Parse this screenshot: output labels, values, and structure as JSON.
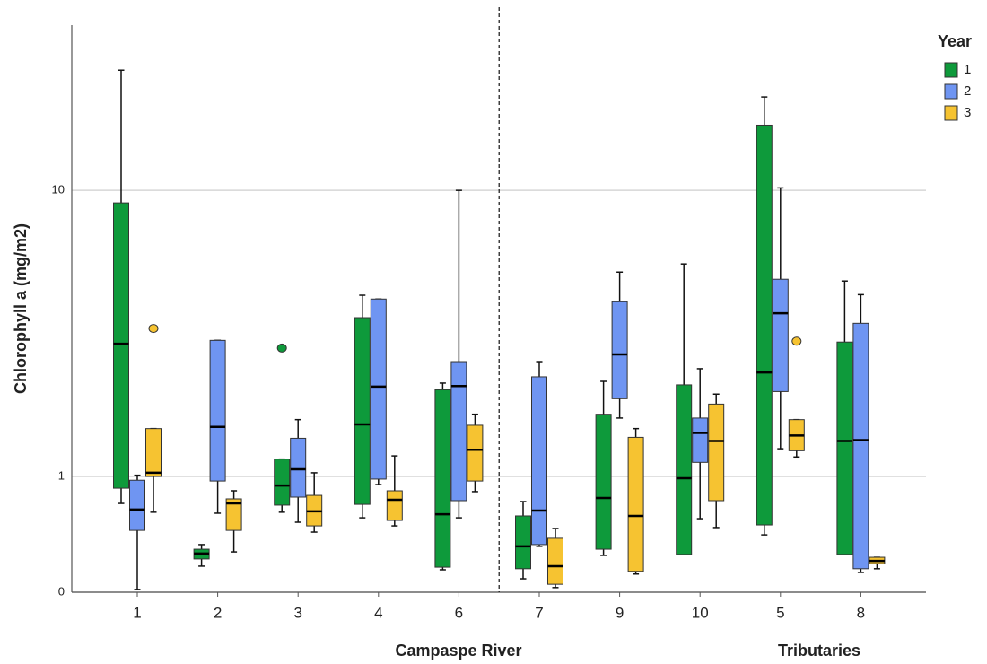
{
  "chart_data": {
    "type": "box",
    "y_label": "Chlorophyll a (mg/m2)",
    "legend_title": "Year",
    "legend_position": "top-right",
    "log_scale": true,
    "grid": true,
    "ylim": [
      0.394,
      37.8
    ],
    "yticks": [
      {
        "value": 0.394,
        "label": "0"
      },
      1,
      10
    ],
    "categories": [
      "1",
      "2",
      "3",
      "4",
      "6",
      "7",
      "9",
      "10",
      "5",
      "8"
    ],
    "groups": [
      {
        "name": "Campaspe River",
        "count": 5
      },
      {
        "name": "Tributaries",
        "count": 5
      }
    ],
    "series": [
      {
        "name": "1",
        "color": "#0e9a3b",
        "whisker_low": [
          0.805,
          0.486,
          0.75,
          0.717,
          0.472,
          0.439,
          0.53,
          0.534,
          0.625,
          0.534
        ],
        "q1": [
          0.91,
          0.515,
          0.794,
          0.799,
          0.482,
          0.476,
          0.557,
          0.534,
          0.677,
          0.534
        ],
        "median": [
          2.91,
          0.538,
          0.93,
          1.52,
          0.738,
          0.57,
          0.841,
          0.986,
          2.31,
          1.33
        ],
        "q3": [
          9.04,
          0.557,
          1.15,
          3.59,
          2.01,
          0.728,
          1.65,
          2.09,
          16.9,
          2.95
        ],
        "whisker_high": [
          26.3,
          0.578,
          1.15,
          4.3,
          2.12,
          0.817,
          2.15,
          5.53,
          21.2,
          4.82
        ],
        "outliers": [
          [],
          [],
          [
            2.81
          ],
          [],
          [],
          [],
          [],
          [],
          [],
          []
        ]
      },
      {
        "name": "2",
        "color": "#6f95f2",
        "whisker_low": [
          0.403,
          0.744,
          0.692,
          0.937,
          0.717,
          0.57,
          1.6,
          0.712,
          1.25,
          0.462
        ],
        "q1": [
          0.648,
          0.964,
          0.847,
          0.979,
          0.823,
          0.578,
          1.87,
          1.12,
          1.98,
          0.476
        ],
        "median": [
          0.766,
          1.49,
          1.06,
          2.06,
          2.07,
          0.76,
          2.67,
          1.42,
          3.72,
          1.34
        ],
        "q3": [
          0.97,
          2.99,
          1.36,
          4.17,
          2.52,
          2.23,
          4.08,
          1.6,
          4.89,
          3.43
        ],
        "whisker_high": [
          1.01,
          2.99,
          1.58,
          4.17,
          10.0,
          2.52,
          5.18,
          2.38,
          10.2,
          4.32
        ],
        "outliers": [
          [],
          [],
          [],
          [],
          [],
          [],
          [],
          [],
          [],
          []
        ]
      },
      {
        "name": "3",
        "color": "#f6c331",
        "whisker_low": [
          0.75,
          0.545,
          0.639,
          0.672,
          0.885,
          0.409,
          0.456,
          0.663,
          1.17,
          0.476
        ],
        "q1": [
          1.0,
          0.648,
          0.672,
          0.702,
          0.964,
          0.42,
          0.466,
          0.823,
          1.23,
          0.496
        ],
        "median": [
          1.03,
          0.805,
          0.755,
          0.829,
          1.24,
          0.486,
          0.728,
          1.33,
          1.39,
          0.507
        ],
        "q3": [
          1.47,
          0.835,
          0.859,
          0.891,
          1.51,
          0.608,
          1.37,
          1.79,
          1.58,
          0.522
        ],
        "whisker_high": [
          1.47,
          0.891,
          1.03,
          1.18,
          1.65,
          0.658,
          1.47,
          1.94,
          1.58,
          0.522
        ],
        "outliers": [
          [
            3.29
          ],
          [],
          [],
          [],
          [],
          [],
          [],
          [],
          [
            2.97
          ],
          []
        ]
      }
    ]
  }
}
